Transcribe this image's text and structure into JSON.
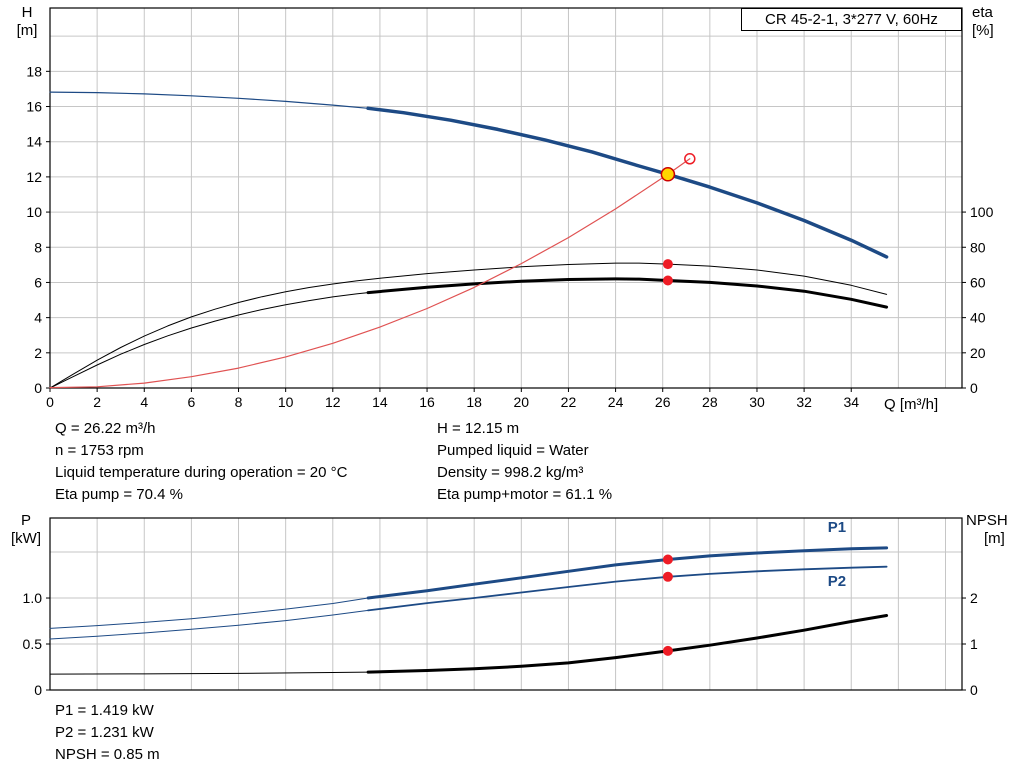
{
  "title_box": {
    "text": "CR 45-2-1, 3*277 V, 60Hz"
  },
  "colors": {
    "blue": "#1d4a85",
    "black": "#000000",
    "red": "#ee1c25",
    "red_line": "#e05252",
    "yellow": "#ffd500",
    "grid": "#c6c6c6",
    "axis": "#000000"
  },
  "info_block": {
    "left": [
      "Q = 26.22 m³/h",
      "n = 1753 rpm",
      "Liquid temperature during operation = 20 °C",
      "Eta pump = 70.4 %"
    ],
    "right": [
      "H = 12.15 m",
      "Pumped liquid = Water",
      "Density = 998.2 kg/m³",
      "Eta pump+motor = 61.1 %"
    ]
  },
  "result_block": [
    "P1 = 1.419 kW",
    "P2 = 1.231 kW",
    "NPSH = 0.85 m"
  ],
  "chart_data": [
    {
      "type": "line",
      "title": "CR 45-2-1, 3*277 V, 60Hz",
      "x_axis": {
        "label": "Q [m³/h]",
        "min": 0,
        "max": 38.7,
        "ticks": [
          [
            0,
            "0"
          ],
          [
            2,
            "2"
          ],
          [
            4,
            "4"
          ],
          [
            6,
            "6"
          ],
          [
            8,
            "8"
          ],
          [
            10,
            "10"
          ],
          [
            12,
            "12"
          ],
          [
            14,
            "14"
          ],
          [
            16,
            "16"
          ],
          [
            18,
            "18"
          ],
          [
            20,
            "20"
          ],
          [
            22,
            "22"
          ],
          [
            24,
            "24"
          ],
          [
            26,
            "26"
          ],
          [
            28,
            "28"
          ],
          [
            30,
            "30"
          ],
          [
            32,
            "32"
          ],
          [
            34,
            "34"
          ]
        ],
        "grid": [
          2,
          4,
          6,
          8,
          10,
          12,
          14,
          16,
          18,
          20,
          22,
          24,
          26,
          28,
          30,
          32,
          34,
          36,
          38
        ]
      },
      "y_left": {
        "label": "H",
        "unit": "[m]",
        "min": 0,
        "max": 21.6,
        "ticks": [
          [
            0,
            "0"
          ],
          [
            2,
            "2"
          ],
          [
            4,
            "4"
          ],
          [
            6,
            "6"
          ],
          [
            8,
            "8"
          ],
          [
            10,
            "10"
          ],
          [
            12,
            "12"
          ],
          [
            14,
            "14"
          ],
          [
            16,
            "16"
          ],
          [
            18,
            "18"
          ]
        ],
        "grid": [
          2,
          4,
          6,
          8,
          10,
          12,
          14,
          16,
          18,
          20
        ]
      },
      "y_right": {
        "label": "eta",
        "unit": "[%]",
        "min": 0,
        "max": 216,
        "ticks": [
          [
            0,
            "0"
          ],
          [
            20,
            "20"
          ],
          [
            40,
            "40"
          ],
          [
            60,
            "60"
          ],
          [
            80,
            "80"
          ],
          [
            100,
            "100"
          ]
        ],
        "grid": []
      },
      "series": [
        {
          "name": "qh-curve-thin",
          "color": "blue",
          "width": 1.2,
          "axis": "left",
          "points": [
            [
              0,
              16.82
            ],
            [
              2,
              16.79
            ],
            [
              4,
              16.72
            ],
            [
              6,
              16.61
            ],
            [
              8,
              16.47
            ],
            [
              10,
              16.29
            ],
            [
              12,
              16.08
            ],
            [
              13.5,
              15.9
            ]
          ]
        },
        {
          "name": "qh-curve",
          "color": "blue",
          "width": 3.5,
          "axis": "left",
          "points": [
            [
              13.5,
              15.9
            ],
            [
              15,
              15.65
            ],
            [
              17,
              15.22
            ],
            [
              19,
              14.7
            ],
            [
              21,
              14.1
            ],
            [
              23,
              13.42
            ],
            [
              25,
              12.62
            ],
            [
              26.22,
              12.15
            ],
            [
              28,
              11.42
            ],
            [
              30,
              10.52
            ],
            [
              32,
              9.52
            ],
            [
              34,
              8.4
            ],
            [
              35.5,
              7.45
            ]
          ]
        },
        {
          "name": "eta-pump-curve",
          "color": "black",
          "width": 1,
          "axis": "right",
          "points": [
            [
              0,
              0
            ],
            [
              1,
              8
            ],
            [
              2,
              15.8
            ],
            [
              3,
              23
            ],
            [
              4,
              29.5
            ],
            [
              5,
              35.3
            ],
            [
              6,
              40.4
            ],
            [
              7,
              44.8
            ],
            [
              8,
              48.6
            ],
            [
              9,
              51.9
            ],
            [
              10,
              54.7
            ],
            [
              11,
              57.1
            ],
            [
              12,
              59.1
            ],
            [
              13,
              60.9
            ],
            [
              14,
              62.4
            ],
            [
              16,
              65.0
            ],
            [
              18,
              67.1
            ],
            [
              20,
              68.9
            ],
            [
              22,
              70.2
            ],
            [
              24,
              71.0
            ],
            [
              25,
              71.0
            ],
            [
              26.22,
              70.4
            ],
            [
              28,
              69.3
            ],
            [
              30,
              67.1
            ],
            [
              32,
              63.6
            ],
            [
              34,
              58.4
            ],
            [
              35.5,
              53.2
            ]
          ]
        },
        {
          "name": "eta-pump-motor-curve-thin",
          "color": "black",
          "width": 1,
          "axis": "right",
          "points": [
            [
              0,
              0
            ],
            [
              1,
              6.6
            ],
            [
              2,
              13.1
            ],
            [
              3,
              19.2
            ],
            [
              4,
              24.7
            ],
            [
              5,
              29.7
            ],
            [
              6,
              34.1
            ],
            [
              7,
              38.0
            ],
            [
              8,
              41.5
            ],
            [
              9,
              44.6
            ],
            [
              10,
              47.3
            ],
            [
              11,
              49.7
            ],
            [
              12,
              51.8
            ],
            [
              13,
              53.5
            ],
            [
              13.5,
              54.2
            ]
          ]
        },
        {
          "name": "eta-pump-motor-curve",
          "color": "black",
          "width": 3,
          "axis": "right",
          "points": [
            [
              13.5,
              54.2
            ],
            [
              16,
              57.3
            ],
            [
              18,
              59.2
            ],
            [
              20,
              60.7
            ],
            [
              22,
              61.7
            ],
            [
              24,
              62.0
            ],
            [
              25,
              61.9
            ],
            [
              26.22,
              61.1
            ],
            [
              28,
              60.0
            ],
            [
              30,
              58.0
            ],
            [
              32,
              55.0
            ],
            [
              34,
              50.4
            ],
            [
              35.5,
              46.0
            ]
          ]
        },
        {
          "name": "system-curve",
          "color": "red_line",
          "width": 1.2,
          "axis": "left",
          "points": [
            [
              0,
              0.02
            ],
            [
              2,
              0.07
            ],
            [
              4,
              0.28
            ],
            [
              6,
              0.64
            ],
            [
              8,
              1.13
            ],
            [
              10,
              1.77
            ],
            [
              12,
              2.54
            ],
            [
              14,
              3.46
            ],
            [
              16,
              4.52
            ],
            [
              18,
              5.72
            ],
            [
              20,
              7.07
            ],
            [
              22,
              8.55
            ],
            [
              24,
              10.18
            ],
            [
              26.22,
              12.15
            ],
            [
              27.15,
              13.03
            ]
          ]
        }
      ],
      "markers": [
        {
          "name": "duty-point",
          "x": 26.22,
          "v": 12.15,
          "axis": "left",
          "type": "duty"
        },
        {
          "name": "rated-point",
          "x": 27.15,
          "v": 13.03,
          "axis": "left",
          "type": "open"
        },
        {
          "name": "eta-pump-point",
          "x": 26.22,
          "v": 70.4,
          "axis": "right",
          "type": "dot"
        },
        {
          "name": "eta-pump-motor-point",
          "x": 26.22,
          "v": 61.1,
          "axis": "right",
          "type": "dot"
        }
      ],
      "labels": []
    },
    {
      "type": "line",
      "title": "",
      "x_axis": {
        "label": "",
        "min": 0,
        "max": 38.7,
        "ticks": [],
        "grid": [
          2,
          4,
          6,
          8,
          10,
          12,
          14,
          16,
          18,
          20,
          22,
          24,
          26,
          28,
          30,
          32,
          34,
          36,
          38
        ]
      },
      "y_left": {
        "label": "P",
        "unit": "[kW]",
        "min": 0,
        "max": 1.87,
        "ticks": [
          [
            0,
            "0"
          ],
          [
            0.5,
            "0.5"
          ],
          [
            1,
            "1.0"
          ]
        ],
        "grid": [
          0.5,
          1.0,
          1.5
        ]
      },
      "y_right": {
        "label": "NPSH",
        "unit": "[m]",
        "min": 0,
        "max": 3.74,
        "ticks": [
          [
            0,
            "0"
          ],
          [
            1,
            "1"
          ],
          [
            2,
            "2"
          ]
        ],
        "grid": []
      },
      "series": [
        {
          "name": "p1-curve-thin",
          "color": "blue",
          "width": 1,
          "axis": "left",
          "points": [
            [
              0,
              0.67
            ],
            [
              2,
              0.7
            ],
            [
              4,
              0.735
            ],
            [
              6,
              0.775
            ],
            [
              8,
              0.825
            ],
            [
              10,
              0.88
            ],
            [
              12,
              0.94
            ],
            [
              13.5,
              1.0
            ]
          ]
        },
        {
          "name": "p1-curve",
          "color": "blue",
          "width": 3,
          "axis": "left",
          "points": [
            [
              13.5,
              1.0
            ],
            [
              16,
              1.08
            ],
            [
              18,
              1.15
            ],
            [
              20,
              1.22
            ],
            [
              22,
              1.29
            ],
            [
              24,
              1.36
            ],
            [
              26.22,
              1.419
            ],
            [
              28,
              1.458
            ],
            [
              30,
              1.49
            ],
            [
              32,
              1.515
            ],
            [
              34,
              1.535
            ],
            [
              35.5,
              1.545
            ]
          ]
        },
        {
          "name": "p2-curve-thin",
          "color": "blue",
          "width": 1,
          "axis": "left",
          "points": [
            [
              0,
              0.555
            ],
            [
              2,
              0.585
            ],
            [
              4,
              0.62
            ],
            [
              6,
              0.66
            ],
            [
              8,
              0.705
            ],
            [
              10,
              0.755
            ],
            [
              12,
              0.815
            ],
            [
              13.5,
              0.865
            ]
          ]
        },
        {
          "name": "p2-curve",
          "color": "blue",
          "width": 1.8,
          "axis": "left",
          "points": [
            [
              13.5,
              0.865
            ],
            [
              16,
              0.945
            ],
            [
              18,
              1.0
            ],
            [
              20,
              1.06
            ],
            [
              22,
              1.12
            ],
            [
              24,
              1.178
            ],
            [
              26.22,
              1.231
            ],
            [
              28,
              1.262
            ],
            [
              30,
              1.29
            ],
            [
              32,
              1.312
            ],
            [
              34,
              1.33
            ],
            [
              35.5,
              1.34
            ]
          ]
        },
        {
          "name": "npsh-curve-thin",
          "color": "black",
          "width": 1,
          "axis": "right",
          "points": [
            [
              0,
              0.345
            ],
            [
              4,
              0.35
            ],
            [
              8,
              0.36
            ],
            [
              12,
              0.38
            ],
            [
              13.5,
              0.39
            ]
          ]
        },
        {
          "name": "npsh-curve",
          "color": "black",
          "width": 3,
          "axis": "right",
          "points": [
            [
              13.5,
              0.39
            ],
            [
              16,
              0.425
            ],
            [
              18,
              0.46
            ],
            [
              20,
              0.515
            ],
            [
              22,
              0.59
            ],
            [
              24,
              0.705
            ],
            [
              26.22,
              0.85
            ],
            [
              28,
              0.975
            ],
            [
              30,
              1.13
            ],
            [
              32,
              1.3
            ],
            [
              34,
              1.49
            ],
            [
              35.5,
              1.62
            ]
          ]
        }
      ],
      "markers": [
        {
          "name": "p1-point",
          "x": 26.22,
          "v": 1.419,
          "axis": "left",
          "type": "dot"
        },
        {
          "name": "p2-point",
          "x": 26.22,
          "v": 1.231,
          "axis": "left",
          "type": "dot"
        },
        {
          "name": "npsh-point",
          "x": 26.22,
          "v": 0.85,
          "axis": "right",
          "type": "dot"
        }
      ],
      "labels": [
        {
          "text": "P1",
          "x": 33,
          "v": 1.72,
          "axis": "left",
          "color": "blue"
        },
        {
          "text": "P2",
          "x": 33,
          "v": 1.13,
          "axis": "left",
          "color": "blue"
        }
      ]
    }
  ]
}
